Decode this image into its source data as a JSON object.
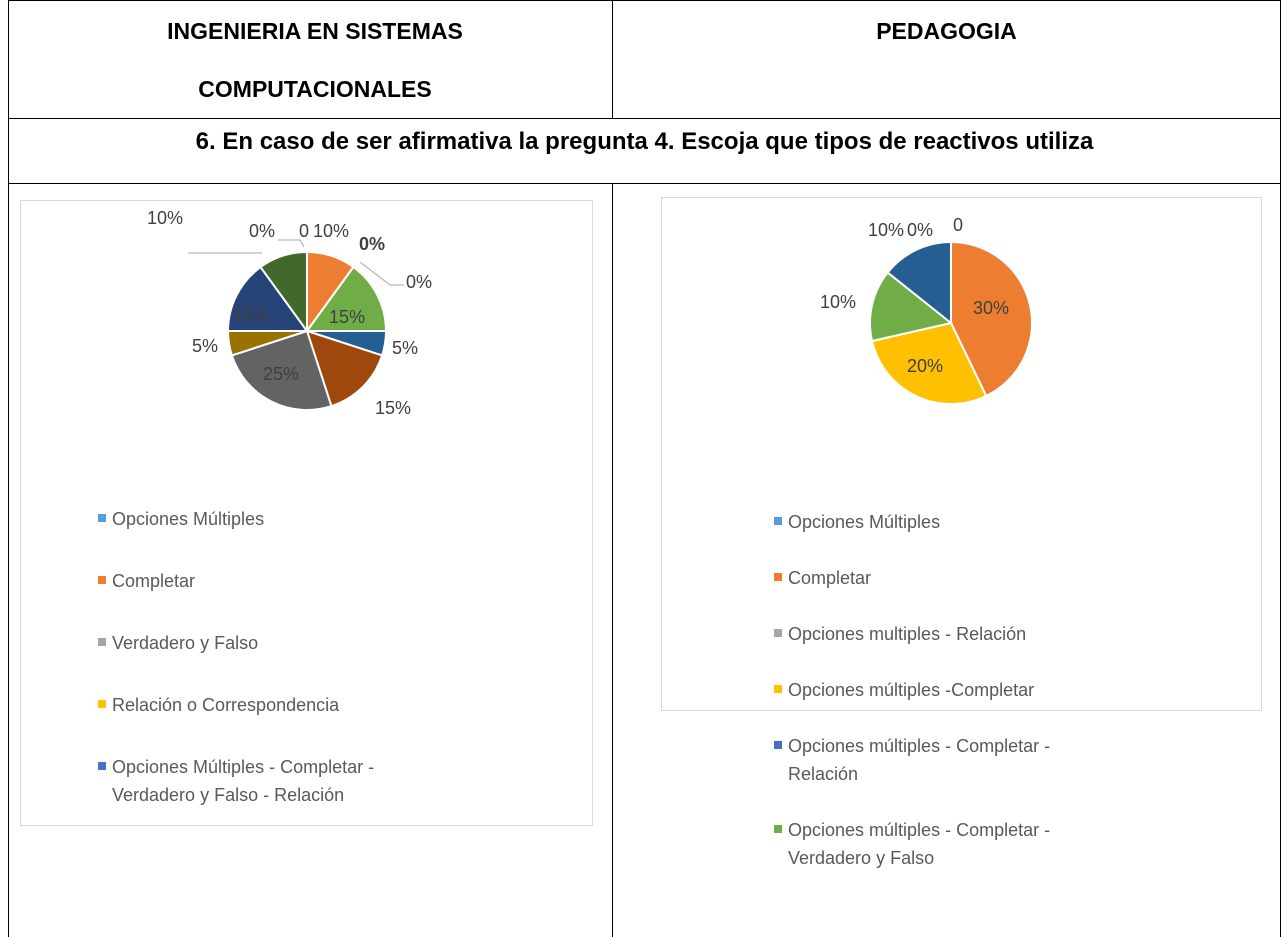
{
  "table": {
    "headers": [
      "INGENIERIA EN SISTEMAS COMPUTACIONALES",
      "PEDAGOGIA"
    ],
    "question": "6. En caso de ser afirmativa la pregunta 4. Escoja que tipos de reactivos utiliza"
  },
  "chart_data": [
    {
      "type": "pie",
      "categories": [
        "Opciones Múltiples",
        "Completar",
        "Verdadero y Falso",
        "Relación o Correspondencia",
        "Opciones Múltiples - Completar - Verdadero y Falso - Relación",
        null,
        null,
        null,
        null,
        null,
        null,
        null
      ],
      "values": [
        0,
        10,
        0,
        0,
        0,
        15,
        5,
        15,
        25,
        5,
        15,
        10
      ],
      "value_labels": [
        "0",
        "10%",
        "0%",
        "0%",
        "0%",
        "15%",
        "5%",
        "15%",
        "25%",
        "5%",
        "15%",
        "10%"
      ],
      "colors": [
        "#5b9bd5",
        "#ed7d31",
        "#a5a5a5",
        "#ffc000",
        "#4472c4",
        "#70ad47",
        "#255e91",
        "#9e480e",
        "#636363",
        "#997300",
        "#264478",
        "#43682b"
      ]
    },
    {
      "type": "pie",
      "categories": [
        "Opciones Múltiples",
        "Completar",
        "Opciones multiples - Relación",
        "Opciones múltiples -Completar",
        "Opciones múltiples - Completar - Relación",
        "Opciones múltiples - Completar - Verdadero y Falso",
        null
      ],
      "values": [
        0,
        30,
        0,
        20,
        0,
        10,
        10
      ],
      "value_labels": [
        "0",
        "30%",
        "0%",
        "20%",
        null,
        "10%",
        "10%"
      ],
      "colors": [
        "#5b9bd5",
        "#ed7d31",
        "#a5a5a5",
        "#ffc000",
        "#4472c4",
        "#70ad47",
        "#255e91"
      ]
    }
  ]
}
